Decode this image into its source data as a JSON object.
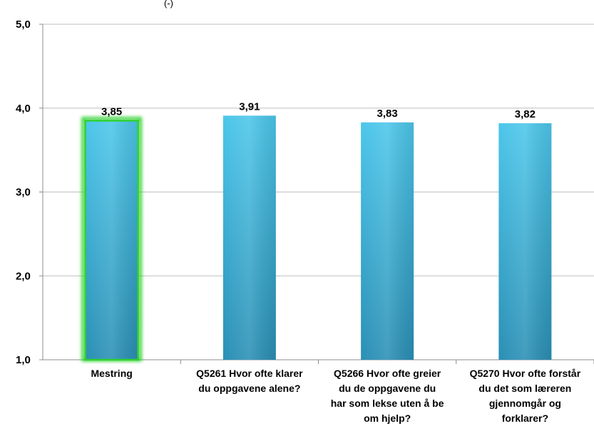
{
  "top_fragment": "(-)",
  "chart_data": {
    "type": "bar",
    "categories": [
      [
        "Mestring"
      ],
      [
        "Q5261 Hvor ofte klarer",
        "du oppgavene alene?"
      ],
      [
        "Q5266 Hvor ofte greier",
        "du de oppgavene du",
        "har som lekse uten å be",
        "om hjelp?"
      ],
      [
        "Q5270 Hvor ofte forstår",
        "du det som læreren",
        "gjennomgår og",
        "forklarer?"
      ]
    ],
    "values": [
      3.85,
      3.91,
      3.83,
      3.82
    ],
    "value_labels": [
      "3,85",
      "3,91",
      "3,83",
      "3,82"
    ],
    "highlighted_index": 0,
    "ylim": [
      1.0,
      5.0
    ],
    "yticks": [
      1.0,
      2.0,
      3.0,
      4.0,
      5.0
    ],
    "ytick_labels": [
      "1,0",
      "2,0",
      "3,0",
      "4,0",
      "5,0"
    ],
    "grid": true,
    "title": "",
    "xlabel": "",
    "ylabel": "",
    "colors": {
      "bar_top": "#4cc6ea",
      "bar_bottom": "#2a8fb5",
      "highlight_border": "#2fd12f",
      "grid": "#bfbfbf",
      "axis": "#8c8c8c"
    }
  }
}
